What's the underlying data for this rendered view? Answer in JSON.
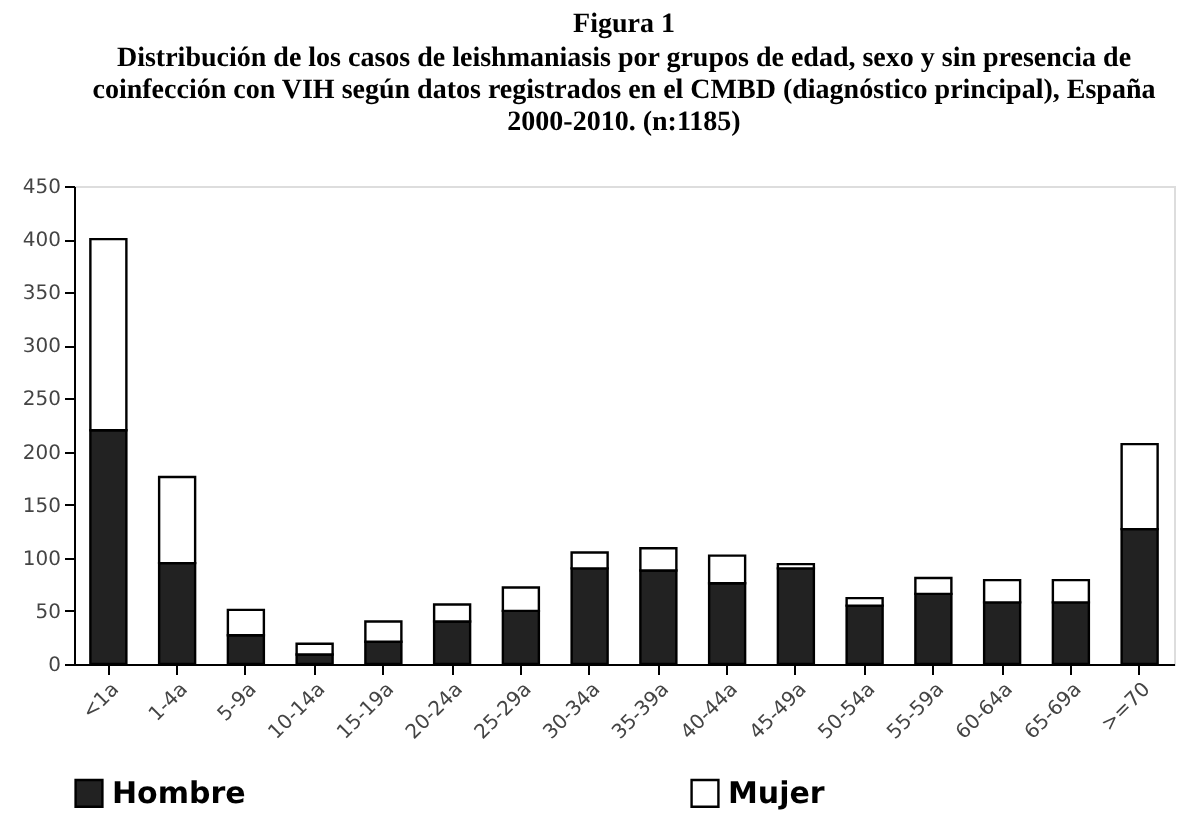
{
  "chart_data": {
    "type": "bar",
    "stacked": true,
    "title": "Figura 1",
    "subtitle": "Distribución de los casos de leishmaniasis por grupos de edad, sexo y sin presencia de coinfección con VIH según datos registrados en el CMBD (diagnóstico principal), España 2000-2010. (n:1185)",
    "categories": [
      "<1a",
      "1-4a",
      "5-9a",
      "10-14a",
      "15-19a",
      "20-24a",
      "25-29a",
      "30-34a",
      "35-39a",
      "40-44a",
      "45-49a",
      "50-54a",
      "55-59a",
      "60-64a",
      "65-69a",
      ">=70"
    ],
    "series": [
      {
        "name": "Hombre",
        "color": "#222222",
        "values": [
          220,
          95,
          27,
          9,
          21,
          40,
          50,
          90,
          88,
          76,
          90,
          55,
          66,
          58,
          58,
          127
        ]
      },
      {
        "name": "Mujer",
        "color": "#ffffff",
        "values": [
          180,
          81,
          24,
          10,
          19,
          16,
          22,
          15,
          21,
          26,
          4,
          7,
          15,
          21,
          21,
          80
        ]
      }
    ],
    "ylim": [
      0,
      450
    ],
    "yticks": [
      0,
      50,
      100,
      150,
      200,
      250,
      300,
      350,
      400,
      450
    ],
    "grid": false,
    "legend": "bottom"
  }
}
